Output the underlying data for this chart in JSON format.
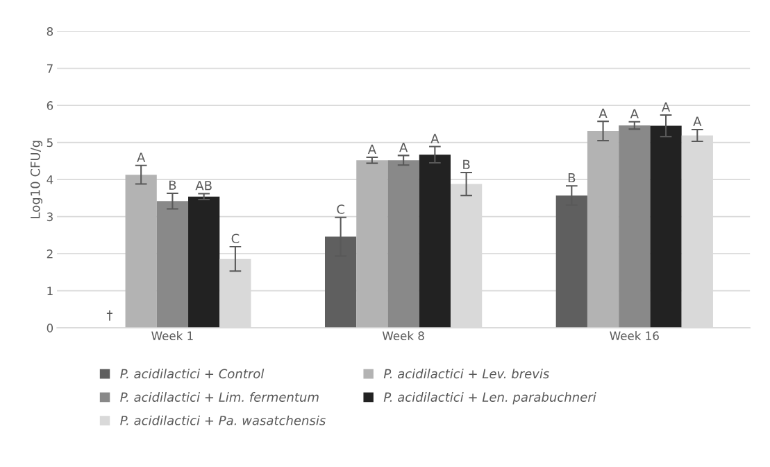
{
  "chart_data": {
    "type": "bar",
    "ylabel": "Log10 CFU/g",
    "categories": [
      "Week 1",
      "Week 8",
      "Week 16"
    ],
    "series": [
      {
        "name": "P. acidilactici + Control",
        "color": "#5f5f5f",
        "values": [
          0,
          2.46,
          3.57
        ],
        "errors": [
          null,
          0.52,
          0.26
        ]
      },
      {
        "name": "P. acidilactici + Lev. brevis",
        "color": "#b3b3b3",
        "values": [
          4.13,
          4.52,
          5.31
        ],
        "errors": [
          0.25,
          0.08,
          0.26
        ]
      },
      {
        "name": "P. acidilactici + Lim. fermentum",
        "color": "#898989",
        "values": [
          3.42,
          4.52,
          5.46
        ],
        "errors": [
          0.21,
          0.13,
          0.1
        ]
      },
      {
        "name": "P. acidilactici + Len. parabuchneri",
        "color": "#222222",
        "values": [
          3.54,
          4.67,
          5.45
        ],
        "errors": [
          0.08,
          0.22,
          0.29
        ]
      },
      {
        "name": "P. acidilactici + Pa. wasatchensis",
        "color": "#d9d9d9",
        "values": [
          1.86,
          3.88,
          5.19
        ],
        "errors": [
          0.33,
          0.31,
          0.16
        ]
      }
    ],
    "annotations": [
      "†",
      "A",
      "B",
      "AB",
      "C",
      "C",
      "A",
      "A",
      "A",
      "B",
      "B",
      "A",
      "A",
      "A",
      "A"
    ],
    "ylim": [
      0,
      8
    ],
    "yticks": [
      0,
      1,
      2,
      3,
      4,
      5,
      6,
      7,
      8
    ],
    "grid": "y",
    "legend": "bottom"
  }
}
